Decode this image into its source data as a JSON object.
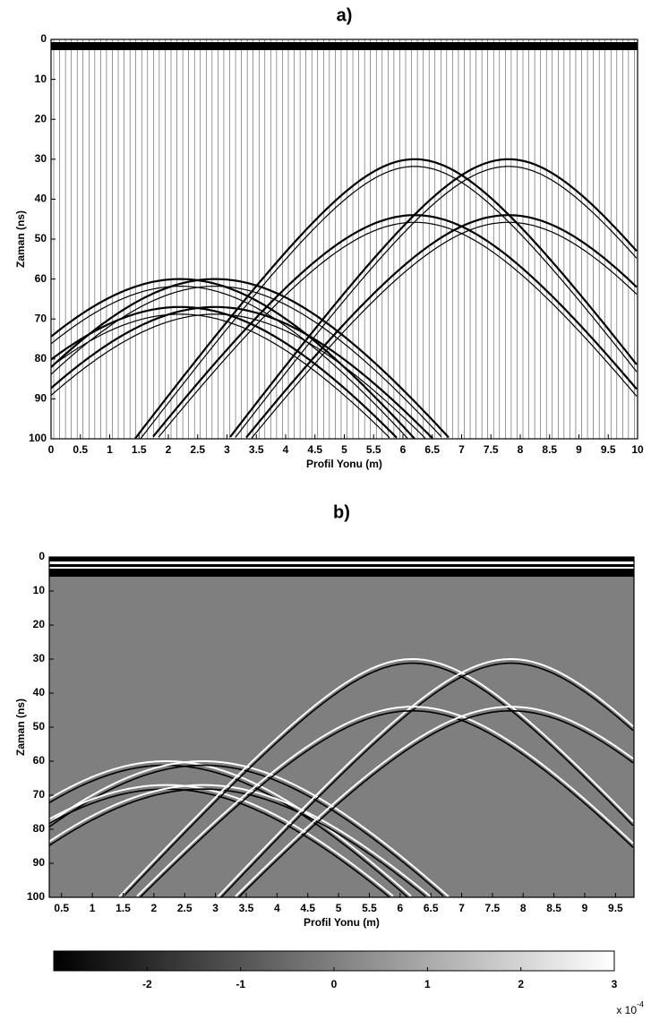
{
  "chart_data": [
    {
      "type": "wiggle",
      "title": "a)",
      "x_label": "Profil Yonu (m)",
      "y_label": "Zaman (ns)",
      "xlim": [
        0,
        10
      ],
      "ylim": [
        0,
        100
      ],
      "y_inverted": true,
      "xticks": [
        0,
        0.5,
        1,
        1.5,
        2,
        2.5,
        3,
        3.5,
        4,
        4.5,
        5,
        5.5,
        6,
        6.5,
        7,
        7.5,
        8,
        8.5,
        9,
        9.5,
        10
      ],
      "yticks": [
        0,
        10,
        20,
        30,
        40,
        50,
        60,
        70,
        80,
        90,
        100
      ],
      "apex_x": [
        2.2,
        2.8,
        2.2,
        2.8,
        6.2,
        7.8,
        6.2,
        7.8
      ],
      "apex_t": [
        60,
        60,
        67,
        67,
        30,
        30,
        44,
        44
      ]
    },
    {
      "type": "image",
      "title": "b)",
      "x_label": "Profil Yonu (m)",
      "y_label": "Zaman (ns)",
      "xlim": [
        0.3,
        9.8
      ],
      "ylim": [
        0,
        100
      ],
      "y_inverted": true,
      "xticks": [
        0.5,
        1,
        1.5,
        2,
        2.5,
        3,
        3.5,
        4,
        4.5,
        5,
        5.5,
        6,
        6.5,
        7,
        7.5,
        8,
        8.5,
        9,
        9.5
      ],
      "yticks": [
        0,
        10,
        20,
        30,
        40,
        50,
        60,
        70,
        80,
        90,
        100
      ],
      "apex_x": [
        2.2,
        2.8,
        2.2,
        2.8,
        6.2,
        7.8,
        6.2,
        7.8
      ],
      "apex_t": [
        60,
        60,
        67,
        67,
        30,
        30,
        44,
        44
      ],
      "colorbar": {
        "lim": [
          -3,
          3
        ],
        "ticks": [
          -2,
          -1,
          0,
          1,
          2,
          3
        ],
        "multiplier": "x 10",
        "exponent": "-4"
      }
    }
  ]
}
